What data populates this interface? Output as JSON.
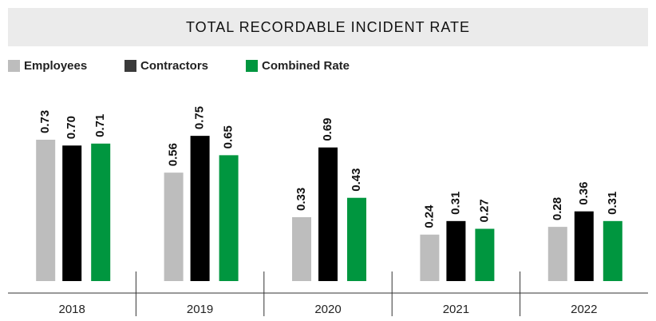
{
  "chart_data": {
    "type": "bar",
    "title": "TOTAL RECORDABLE INCIDENT RATE",
    "categories": [
      "2018",
      "2019",
      "2020",
      "2021",
      "2022"
    ],
    "series": [
      {
        "name": "Employees",
        "color": "#bdbdbd",
        "values": [
          0.73,
          0.56,
          0.33,
          0.24,
          0.28
        ]
      },
      {
        "name": "Contractors",
        "color": "#000000",
        "values": [
          0.7,
          0.75,
          0.69,
          0.31,
          0.36
        ]
      },
      {
        "name": "Combined Rate",
        "color": "#00963f",
        "values": [
          0.71,
          0.65,
          0.43,
          0.27,
          0.31
        ]
      }
    ],
    "value_labels": [
      [
        "0.73",
        "0.56",
        "0.33",
        "0.24",
        "0.28"
      ],
      [
        "0.70",
        "0.75",
        "0.69",
        "0.31",
        "0.36"
      ],
      [
        "0.71",
        "0.65",
        "0.43",
        "0.27",
        "0.31"
      ]
    ],
    "ylim": [
      0,
      0.8
    ],
    "legend": "top-left"
  }
}
